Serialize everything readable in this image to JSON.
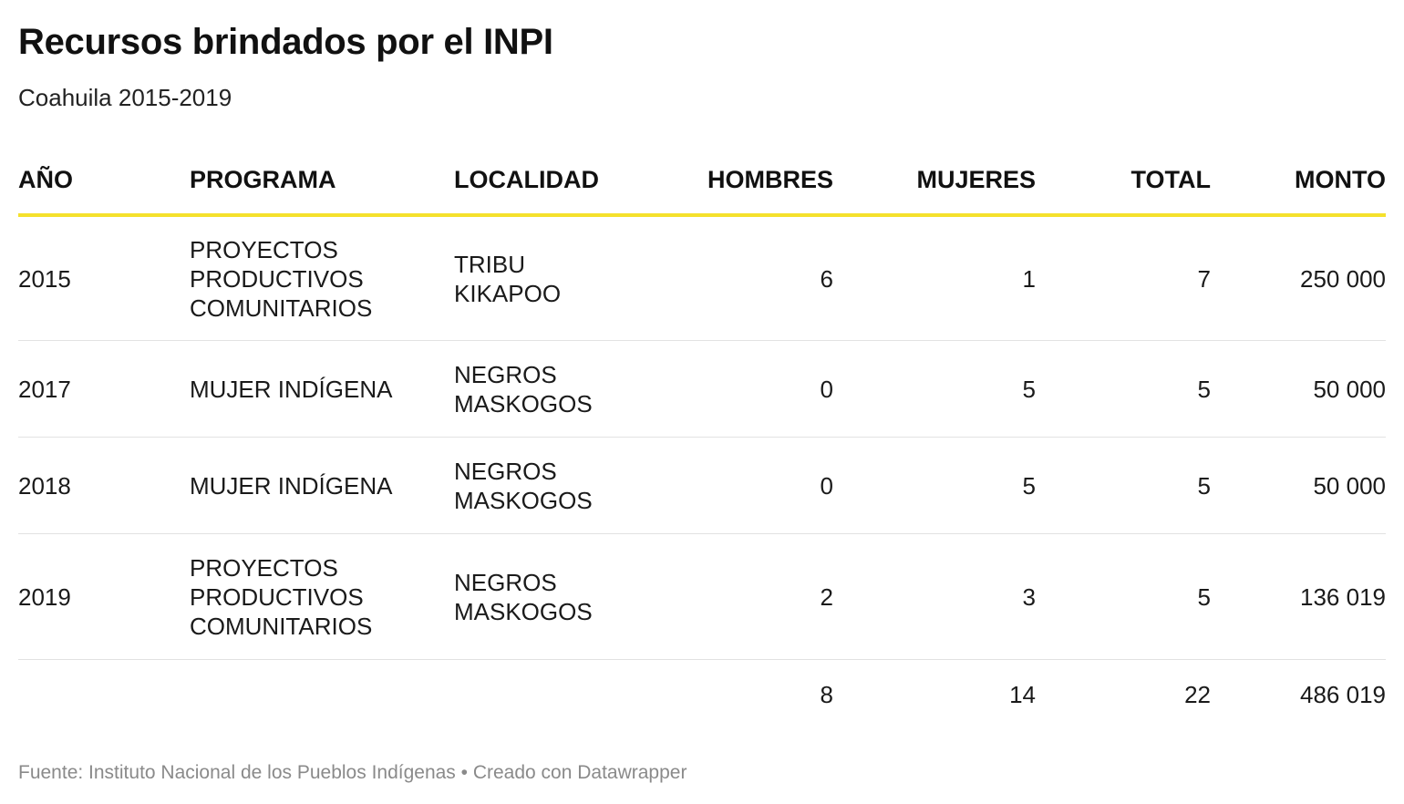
{
  "title": "Recursos brindados por el INPI",
  "subtitle": "Coahuila 2015-2019",
  "chart_data": {
    "type": "table",
    "title": "Recursos brindados por el INPI",
    "subtitle": "Coahuila 2015-2019",
    "columns": [
      "AÑO",
      "PROGRAMA",
      "LOCALIDAD",
      "HOMBRES",
      "MUJERES",
      "TOTAL",
      "MONTO"
    ],
    "rows": [
      [
        "2015",
        "PROYECTOS PRODUCTIVOS COMUNITARIOS",
        "TRIBU KIKAPOO",
        "6",
        "1",
        "7",
        "250 000"
      ],
      [
        "2017",
        "MUJER INDÍGENA",
        "NEGROS MASKOGOS",
        "0",
        "5",
        "5",
        "50 000"
      ],
      [
        "2018",
        "MUJER INDÍGENA",
        "NEGROS MASKOGOS",
        "0",
        "5",
        "5",
        "50 000"
      ],
      [
        "2019",
        "PROYECTOS PRODUCTIVOS COMUNITARIOS",
        "NEGROS MASKOGOS",
        "2",
        "3",
        "5",
        "136 019"
      ]
    ],
    "totals": [
      "",
      "",
      "",
      "8",
      "14",
      "22",
      "486 019"
    ]
  },
  "colors": {
    "header_rule": "#f5e12c",
    "row_divider": "#e2e2e2",
    "footer_text": "#8a8a8a"
  },
  "footer": "Fuente: Instituto Nacional de los Pueblos Indígenas • Creado con Datawrapper"
}
